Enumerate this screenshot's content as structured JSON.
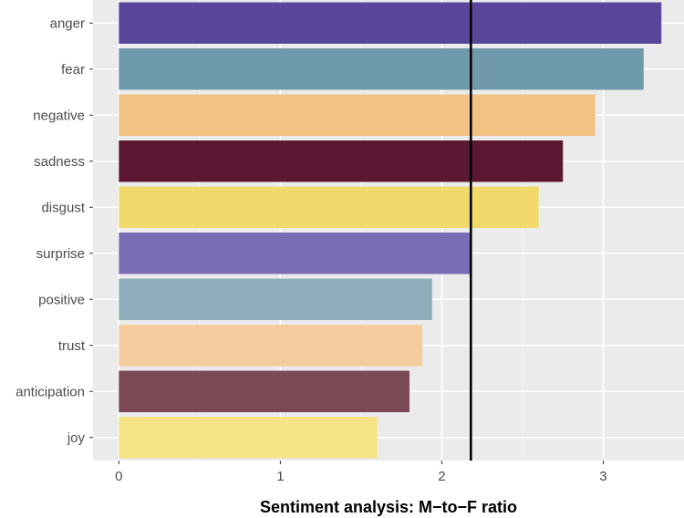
{
  "chart_data": {
    "type": "bar",
    "orientation": "horizontal",
    "xlabel": "Sentiment analysis: M−to−F ratio",
    "ylabel": "",
    "xlim": [
      -0.16,
      3.5
    ],
    "xticks": [
      0,
      1,
      2,
      3
    ],
    "grid": true,
    "reference_line": 2.18,
    "categories": [
      "anger",
      "fear",
      "negative",
      "sadness",
      "disgust",
      "surprise",
      "positive",
      "trust",
      "anticipation",
      "joy"
    ],
    "values": [
      3.36,
      3.25,
      2.95,
      2.75,
      2.6,
      2.18,
      1.94,
      1.88,
      1.8,
      1.6
    ],
    "colors": [
      "#5a479c",
      "#6f9aac",
      "#f2c283",
      "#5c1832",
      "#f2d96b",
      "#7a6db5",
      "#8fadbb",
      "#f5cc9e",
      "#7b4855",
      "#f6e384"
    ]
  }
}
